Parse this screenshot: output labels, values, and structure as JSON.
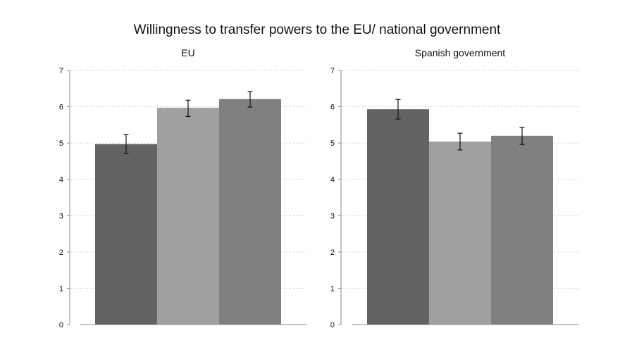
{
  "figure": {
    "title": "Willingness to transfer powers to the EU/ national government"
  },
  "colors": {
    "background": "#ffffff",
    "axis": "#888888",
    "grid": "#bbbbbb",
    "errorbar": "#111111",
    "text": "#111111",
    "bars": [
      "#636363",
      "#a0a0a0",
      "#808080"
    ]
  },
  "chart_data": [
    {
      "type": "bar",
      "title": "EU",
      "xlabel": "",
      "ylabel": "",
      "ylim": [
        0,
        7
      ],
      "yticks": [
        0,
        1,
        2,
        3,
        4,
        5,
        6,
        7
      ],
      "grid": true,
      "bars": [
        {
          "value": 4.97,
          "ci_low": 4.71,
          "ci_high": 5.23
        },
        {
          "value": 5.97,
          "ci_low": 5.73,
          "ci_high": 6.18
        },
        {
          "value": 6.21,
          "ci_low": 5.99,
          "ci_high": 6.42
        }
      ]
    },
    {
      "type": "bar",
      "title": "Spanish government",
      "xlabel": "",
      "ylabel": "",
      "ylim": [
        0,
        7
      ],
      "yticks": [
        0,
        1,
        2,
        3,
        4,
        5,
        6,
        7
      ],
      "grid": true,
      "bars": [
        {
          "value": 5.93,
          "ci_low": 5.66,
          "ci_high": 6.2
        },
        {
          "value": 5.04,
          "ci_low": 4.81,
          "ci_high": 5.27
        },
        {
          "value": 5.2,
          "ci_low": 4.96,
          "ci_high": 5.43
        }
      ]
    }
  ]
}
